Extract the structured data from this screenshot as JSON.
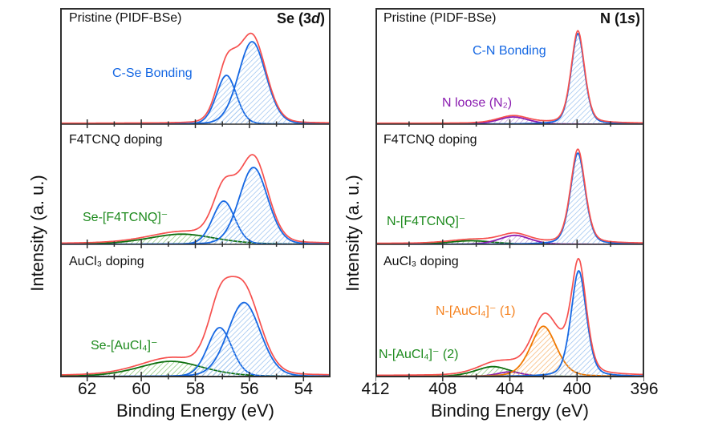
{
  "colors": {
    "red": "#F6504E",
    "blue": "#1668E3",
    "blue_hatch": "#9CC3F0",
    "green": "#0E6F0E",
    "green_hatch": "#8CC87C",
    "green_label": "#1D8A1D",
    "purple": "#8A1CB0",
    "purple_hatch": "#C9A0DC",
    "orange": "#F07800",
    "orange_hatch": "#F8B878",
    "orange_label": "#F5821F",
    "frame": "#2F2F2F",
    "text": "#111111"
  },
  "chart_data": [
    {
      "id": "se3d",
      "type": "area",
      "title_pre": "Se (3",
      "title_italic": "d",
      "title_post": ")",
      "xlabel": "Binding Energy (eV)",
      "ylabel": "Intensity (a. u.)",
      "x_range": [
        63,
        53
      ],
      "x_ticks_major": [
        62,
        60,
        58,
        56,
        54
      ],
      "x_ticks_minor": [
        61,
        59,
        57,
        55
      ],
      "x_tick_labels": [
        "62",
        "60",
        "58",
        "56",
        "54"
      ],
      "grid": false,
      "panels": [
        {
          "label": "Pristine (PIDF-BSe)",
          "annotations": [
            {
              "text": "C-Se Bonding",
              "color": "blue"
            }
          ],
          "peaks": [
            {
              "assignment": "C-Se bonding Se 3d3/2",
              "color": "blue",
              "center": 56.85,
              "height": 0.42,
              "sigma": 0.38,
              "lor": 0.15
            },
            {
              "assignment": "C-Se bonding Se 3d5/2",
              "color": "blue",
              "center": 55.9,
              "height": 0.71,
              "sigma": 0.52,
              "lor": 0.15
            }
          ],
          "envelope_scale": 1.05
        },
        {
          "label": "F4TCNQ doping",
          "annotations": [
            {
              "text": "Se-[F4TCNQ]⁻",
              "color": "green"
            }
          ],
          "peaks": [
            {
              "assignment": "Se-[F4TCNQ]- charge transfer",
              "color": "green",
              "center": 58.5,
              "height": 0.085,
              "sigma": 1.3,
              "lor": 0.3
            },
            {
              "assignment": "C-Se bonding Se 3d3/2",
              "color": "blue",
              "center": 56.95,
              "height": 0.36,
              "sigma": 0.42,
              "lor": 0.15
            },
            {
              "assignment": "C-Se bonding Se 3d5/2",
              "color": "blue",
              "center": 55.85,
              "height": 0.64,
              "sigma": 0.54,
              "lor": 0.15
            }
          ],
          "envelope_scale": 1.1
        },
        {
          "label": "AuCl₃ doping",
          "annotations": [
            {
              "text": "Se-[AuCl₄]⁻",
              "color": "green"
            }
          ],
          "peaks": [
            {
              "assignment": "Se-[AuCl4]- charge transfer",
              "color": "green",
              "center": 58.9,
              "height": 0.115,
              "sigma": 1.25,
              "lor": 0.3
            },
            {
              "assignment": "C-Se bonding Se 3d3/2",
              "color": "blue",
              "center": 57.1,
              "height": 0.37,
              "sigma": 0.46,
              "lor": 0.15
            },
            {
              "assignment": "C-Se bonding Se 3d5/2",
              "color": "blue",
              "center": 56.2,
              "height": 0.56,
              "sigma": 0.62,
              "lor": 0.15
            }
          ],
          "envelope_scale": 1.12
        }
      ]
    },
    {
      "id": "n1s",
      "type": "area",
      "title_pre": "N (1",
      "title_italic": "s",
      "title_post": ")",
      "xlabel": "Binding Energy (eV)",
      "ylabel": "Intensity (a. u.)",
      "x_range": [
        412,
        396
      ],
      "x_ticks_major": [
        412,
        408,
        404,
        400,
        396
      ],
      "x_ticks_minor": [
        410,
        406,
        402,
        398
      ],
      "x_tick_labels": [
        "412",
        "408",
        "404",
        "400",
        "396"
      ],
      "grid": false,
      "panels": [
        {
          "label": "Pristine (PIDF-BSe)",
          "annotations": [
            {
              "text": "C-N Bonding",
              "color": "blue"
            },
            {
              "text": "N loose (N₂)",
              "color": "purple"
            }
          ],
          "peaks": [
            {
              "assignment": "loose N2 nitrogen",
              "color": "purple",
              "center": 403.8,
              "height": 0.062,
              "sigma": 0.95,
              "lor": 0.3
            },
            {
              "assignment": "C-N bonding",
              "color": "blue",
              "center": 399.95,
              "height": 0.78,
              "sigma": 0.42,
              "lor": 0.35
            }
          ],
          "envelope_scale": 1.02
        },
        {
          "label": "F4TCNQ doping",
          "annotations": [
            {
              "text": "N-[F4TCNQ]⁻",
              "color": "green"
            }
          ],
          "peaks": [
            {
              "assignment": "N-[F4TCNQ]- charge transfer",
              "color": "green",
              "center": 406.3,
              "height": 0.03,
              "sigma": 1.4,
              "lor": 0.3
            },
            {
              "assignment": "loose N2 nitrogen",
              "color": "purple",
              "center": 403.7,
              "height": 0.075,
              "sigma": 0.95,
              "lor": 0.3
            },
            {
              "assignment": "C-N bonding",
              "color": "blue",
              "center": 399.95,
              "height": 0.76,
              "sigma": 0.46,
              "lor": 0.35
            }
          ],
          "envelope_scale": 1.03
        },
        {
          "label": "AuCl₃ doping",
          "annotations": [
            {
              "text": "N-[AuCl₄]⁻ (1)",
              "color": "orange"
            },
            {
              "text": "N-[AuCl₄]⁻ (2)",
              "color": "green"
            }
          ],
          "peaks": [
            {
              "assignment": "N-[AuCl4]- (2)",
              "color": "green",
              "center": 405.0,
              "height": 0.075,
              "sigma": 1.1,
              "lor": 0.3
            },
            {
              "assignment": "loose N2 nitrogen",
              "color": "purple",
              "center": 404.0,
              "height": 0.035,
              "sigma": 0.8,
              "lor": 0.3
            },
            {
              "assignment": "N-[AuCl4]- (1)",
              "color": "orange",
              "center": 402.0,
              "height": 0.38,
              "sigma": 0.8,
              "lor": 0.3
            },
            {
              "assignment": "C-N bonding",
              "color": "blue",
              "center": 399.9,
              "height": 0.8,
              "sigma": 0.48,
              "lor": 0.35
            }
          ],
          "envelope_extra": [
            {
              "center": 401.2,
              "height": 0.09,
              "sigma": 0.7,
              "lor": 0.3
            }
          ],
          "envelope_scale": 1.05
        }
      ]
    }
  ]
}
